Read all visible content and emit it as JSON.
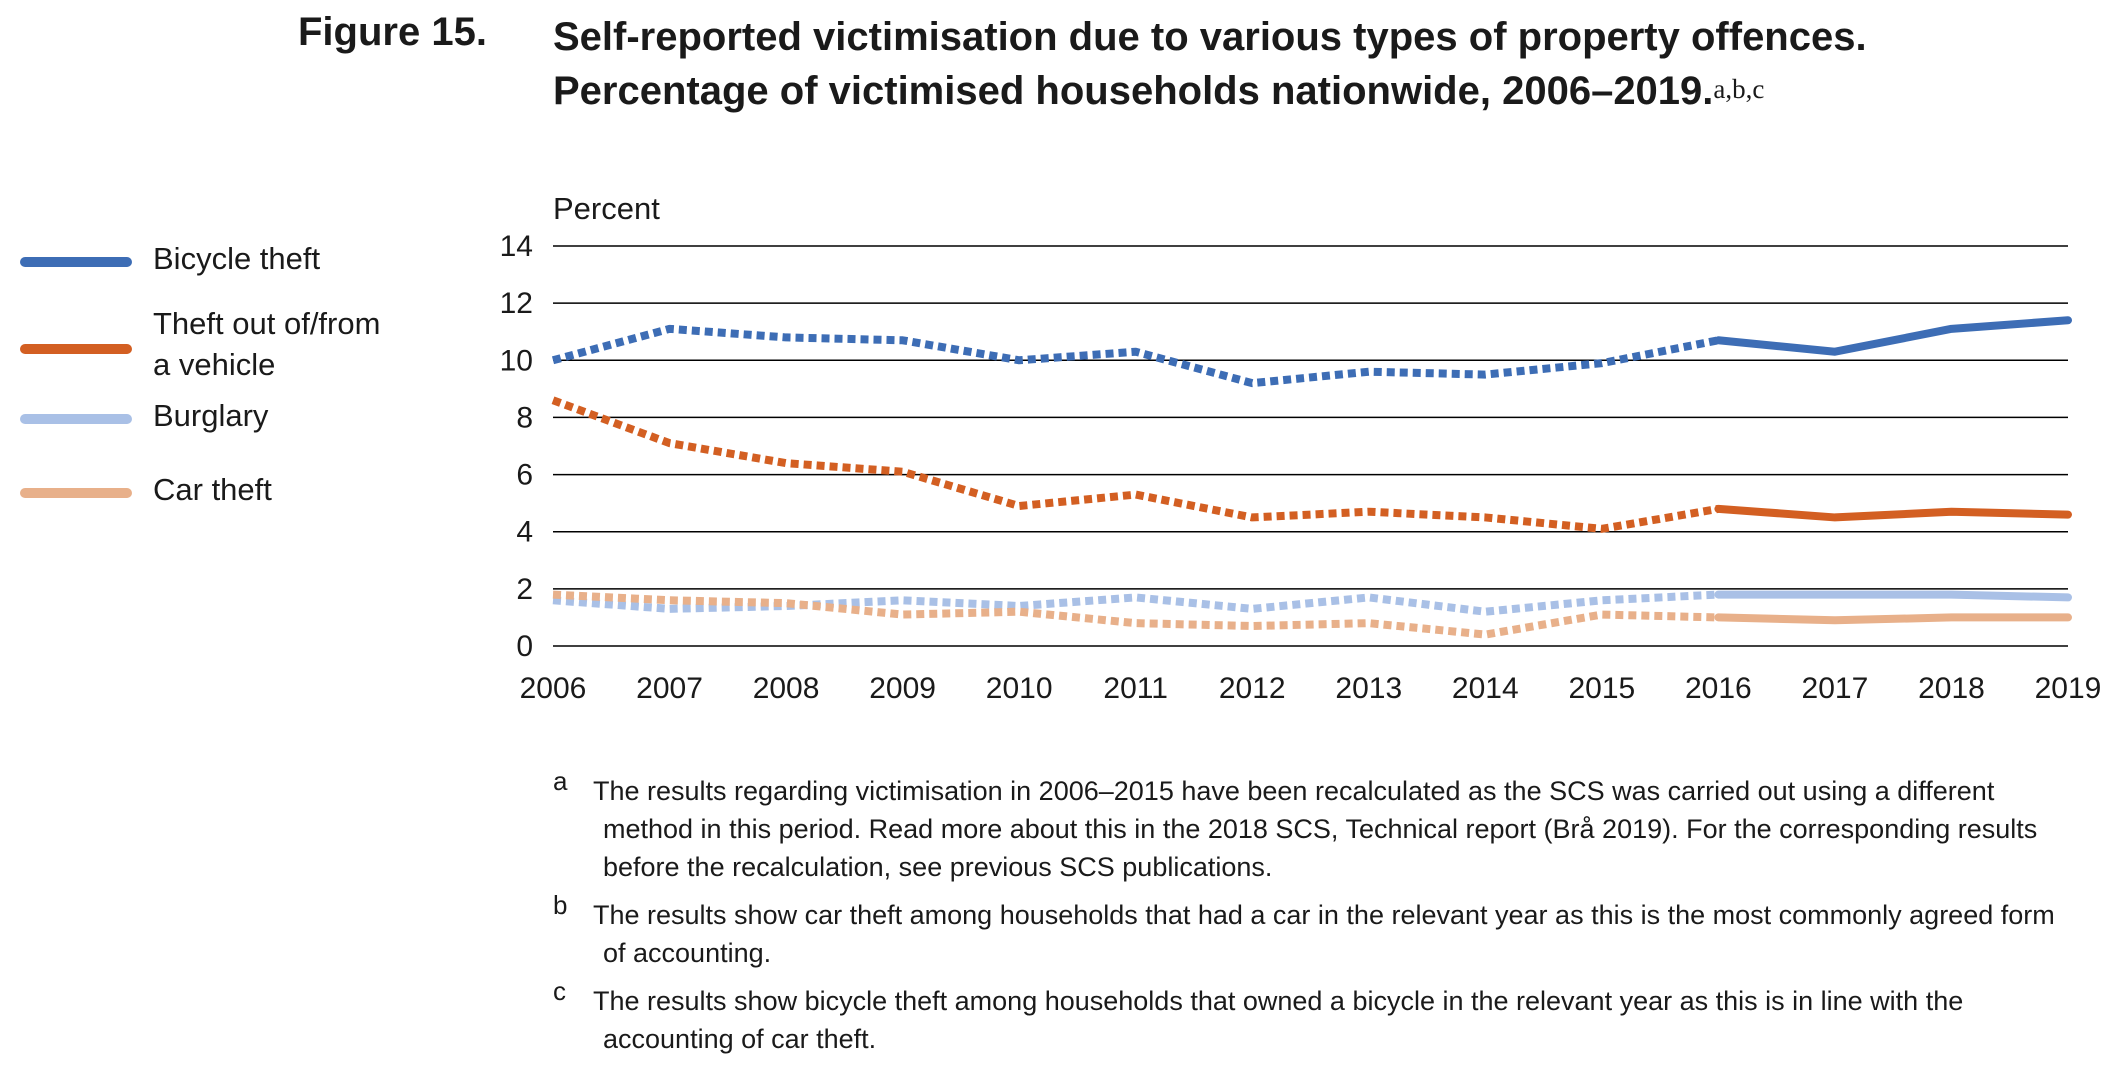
{
  "figure": {
    "label": "Figure 15.",
    "title_line1": "Self-reported victimisation due to various types of property offences.",
    "title_line2": "Percentage of victimised households nationwide, 2006–2019.",
    "title_sup": "a,b,c"
  },
  "legend": [
    {
      "label_lines": [
        "Bicycle theft"
      ],
      "color": "#3d6db5"
    },
    {
      "label_lines": [
        "Theft out of/from",
        "a vehicle"
      ],
      "color": "#d35f22"
    },
    {
      "label_lines": [
        "Burglary"
      ],
      "color": "#a9c0e6"
    },
    {
      "label_lines": [
        "Car theft"
      ],
      "color": "#e8b08a"
    }
  ],
  "chart_data": {
    "type": "line",
    "ylabel": "Percent",
    "xlabel": "",
    "x": [
      "2006",
      "2007",
      "2008",
      "2009",
      "2010",
      "2011",
      "2012",
      "2013",
      "2014",
      "2015",
      "2016",
      "2017",
      "2018",
      "2019"
    ],
    "ylim": [
      0,
      14
    ],
    "yticks": [
      "0",
      "2",
      "4",
      "6",
      "8",
      "10",
      "12",
      "14"
    ],
    "grid": true,
    "legend_position": "left",
    "note": "2006–2015 values recalculated (dotted); 2016–2019 solid",
    "series": [
      {
        "name": "Bicycle theft",
        "color": "#3d6db5",
        "values": [
          10.0,
          11.1,
          10.8,
          10.7,
          10.0,
          10.3,
          9.2,
          9.6,
          9.5,
          9.9,
          10.7,
          10.3,
          11.1,
          11.4
        ]
      },
      {
        "name": "Theft out of/from a vehicle",
        "color": "#d35f22",
        "values": [
          8.6,
          7.1,
          6.4,
          6.1,
          4.9,
          5.3,
          4.5,
          4.7,
          4.5,
          4.1,
          4.8,
          4.5,
          4.7,
          4.6
        ]
      },
      {
        "name": "Burglary",
        "color": "#a9c0e6",
        "values": [
          1.6,
          1.3,
          1.4,
          1.6,
          1.4,
          1.7,
          1.3,
          1.7,
          1.2,
          1.6,
          1.8,
          1.8,
          1.8,
          1.7
        ]
      },
      {
        "name": "Car theft",
        "color": "#e8b08a",
        "values": [
          1.8,
          1.6,
          1.5,
          1.1,
          1.2,
          0.8,
          0.7,
          0.8,
          0.4,
          1.1,
          1.0,
          0.9,
          1.0,
          1.0
        ]
      }
    ]
  },
  "footnotes": [
    {
      "letter": "a",
      "text": "The results regarding victimisation in 2006–2015 have been recalculated as the SCS was carried out using a different method in this period. Read more about this in the 2018 SCS, Technical report (Brå 2019). For the corresponding results before the recalculation, see previous SCS publications."
    },
    {
      "letter": "b",
      "text": "The results show car theft among households that had a car in the relevant year as this is the most commonly agreed form of accounting."
    },
    {
      "letter": "c",
      "text": "The results show bicycle theft among households that owned a bicycle in the relevant year as this is in line with the accounting of car theft."
    }
  ]
}
